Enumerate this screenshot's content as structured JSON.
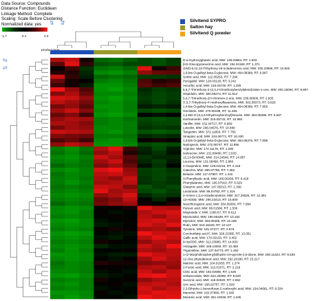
{
  "info": {
    "lines": [
      "Data Source: Compounds",
      "Distance Function: Euclidean",
      "Linkage Method: Complete",
      "Scaling: Scale Before Clustering",
      "Normalized data: yes"
    ]
  },
  "scale": {
    "min": "-1.7",
    "mid": "0.1",
    "max": "2.0"
  },
  "ptype_label": "product type",
  "legend": [
    {
      "label": "Silvitend SYPRO",
      "color": "#1f4fb4"
    },
    {
      "label": "Salton hay",
      "color": "#9a9a2a"
    },
    {
      "label": "Silvitend Q powder",
      "color": "#f3a21e"
    }
  ],
  "chart_data": {
    "type": "heatmap",
    "columns": 9,
    "column_groups": [
      "Silvitend SYPRO",
      "Silvitend SYPRO",
      "Silvitend SYPRO",
      "Salton hay",
      "Salton hay",
      "Salton hay",
      "Silvitend Q powder",
      "Silvitend Q powder",
      "Silvitend Q powder"
    ],
    "color_range": [
      -1.7,
      2.0
    ],
    "rows": [
      "D-α-Hydroxyglutaric acid, MW: 148.03664, RT: 1.503",
      "β-D-Glucopyranuronic acid, MW: 194.04189, RT: 1.371",
      "(15Z)-9,12,13-Trihydroxy-15-octadecenoic acid, MW: 330.23965, RT: 13.845",
      "1,6-bis-O-galloyl-beta-D-glucose, MW: 484.08388, RT: 6.087",
      "Sorbic acid, MW: 112.05253, RT: 7.296",
      "Pyrogallol, MW: 126.03128, RT: 3.242",
      "Ascorbic acid, MW: 133.03746, RT: 1.326",
      "5,6,7-Trimethoxy-2-(2,3,4-trimethoxybenzylidene)indan-1-one, MW: 400.15000, RT: 9.897",
      "Hispidulin, MW: 300.06274, RT: 11.914",
      "5,6,7-Trimethoxy-2H-chromen-2-one, MW: 236.06606, RT: 2.935",
      "3',5,7-Trihydroxy-4'-methoxyflavanone, MW: 302.08373, RT: 9.826",
      "1,4-bis-O-galloyl-beta-D-glucose, MW: 484.08388, RT: 7.656",
      "Genistein, MW: 270.05188, RT: 11.466",
      "1,4-Bis-O-(3,4,5-trihydroxybenzoyl)hexose, MW: 484.08396, RT: 6.597",
      "Isorhamnetin, MW: 316.05743, RT: 10.960",
      "Vanillin, MW: 152.04727, RT: 8.969",
      "Luteolin, MW: 286.04676, RT: 10.880",
      "Tangeritin, MW: 372.11863, RT: 7.750",
      "Sinapinic acid, MW: 224.06771, RT: 10.430",
      "1,3-bis-O-galloyl-beta-D-glucose, MW: 484.08376, RT: 7.098",
      "Naringenin, MW: 272.06747, RT: 11.656",
      "Arginine, MW: 174.11176, RT: 1.290",
      "Isoleucine, MW: 131.09490, RT: 2.633",
      "12,13-DiHOME, MW: 314.24546, RT: 14.957",
      "Leucine, MW: 131.09468, RT: 2.860",
      "4-Oxoproline, MW: 129.04215, RT: 2.419",
      "Catechin, MW: 290.07796, RT: 7.382",
      "Betaine, MW: 117.07907, RT: 1.415",
      "3-Phenyllactic acid, MW: 166.06266, RT: 6.419",
      "Phenylalanine, MW: 165.07910, RT: 5.529",
      "Glutamic acid, MW: 147.05313, RT: 1.338",
      "Lactamide, MW: 89.04782, RT: 1.316",
      "2-Amino-1,3,4-octadecanetriol, MW: 317.29325, RT: 12.381",
      "13-HODE, MW: 296.23414, RT: 15.600",
      "Neochlorogenic acid, MW: 354.09384, RT: 7.994",
      "Pyruvic acid, MW: 88.01568, RT: 1.536",
      "Mogroside V, MW: 1286.67, RT: 8.612",
      "Myoinositol, MW: 180.06339, RT: 10.162",
      "Myricitrin, MW: 464.09465, RT: 10.169",
      "Rutin, MW: 610.15229, RT: 10.127",
      "Tyrosine, MW: 181.07377, RT: 2.679",
      "Corchorifatty acid F, MW: 328.22385, RT: 13.051",
      "Gallic acid, MW: 170.02153, RT: 3.402",
      "9-HpODE, MW: 312.23985, RT: 14.830",
      "Astragalin, MW: 448.10050, RT: 10.459",
      "Trigonelline, MW: 137.04773, RT: 1.492",
      "1-(2-Morpholinophenyl)dihydro-1H-pyrrole-2,5-dione, MW: 260.11623, RT: 9.639",
      "12-Oxo phytodienoic acid, MW: 292.20180, RT: 15.217",
      "Malonic acid, MW: 104.01053, RT: 1.374",
      "2-Furoic acid, MW: 112.01571, RT: 2.219",
      "Citric acid, MW: 192.02695, RT: 1.626",
      "verbascoside, MW: 624.20369, RT: 9.620",
      "Succinic acid, MW: 118.02620, RT: 2.652",
      "Uric acid, MW: 168.02757, RT: 1.628",
      "2,3-Dihydro-1-benzofuran-2-carboxylic acid, MW: 164.04681, RT: 9.334",
      "Mannitol, MW: 182.07890, RT: 1.345",
      "Muramic acid, MW: 251.10049, RT: 1.345"
    ],
    "values": [
      [
        1.4,
        1.6,
        0.3,
        -0.8,
        -0.9,
        -0.7,
        -0.5,
        -0.6,
        -0.4
      ],
      [
        0.8,
        1.8,
        0.5,
        -0.6,
        -0.7,
        -0.5,
        -0.5,
        -0.6,
        -0.4
      ],
      [
        0.2,
        0.6,
        -0.3,
        -0.9,
        -1.0,
        -0.8,
        1.8,
        0.3,
        0.6
      ],
      [
        0.4,
        0.4,
        -0.2,
        -1.1,
        -1.2,
        -1.0,
        1.2,
        0.9,
        0.8
      ],
      [
        1.6,
        0.5,
        -0.1,
        -0.8,
        -0.9,
        -0.8,
        -0.4,
        -0.4,
        -0.3
      ],
      [
        0.9,
        0.3,
        0.2,
        -1.0,
        -1.1,
        -0.9,
        0.7,
        0.4,
        0.5
      ],
      [
        0.6,
        0.3,
        -0.1,
        -1.2,
        -1.2,
        -1.0,
        0.8,
        0.6,
        0.7
      ],
      [
        1.9,
        1.2,
        0.7,
        -1.2,
        -1.3,
        -1.1,
        -0.2,
        -0.4,
        -0.3
      ],
      [
        1.1,
        1.4,
        0.9,
        -1.1,
        -1.1,
        -1.0,
        -0.3,
        -0.5,
        -0.4
      ],
      [
        1.7,
        1.6,
        1.2,
        -1.2,
        -1.3,
        -1.1,
        -0.4,
        -0.5,
        -0.4
      ],
      [
        1.5,
        1.3,
        1.0,
        -1.1,
        -1.2,
        -1.0,
        -0.3,
        -0.5,
        -0.3
      ],
      [
        1.0,
        1.2,
        0.8,
        -1.2,
        -1.2,
        -1.0,
        -0.1,
        -0.2,
        -0.1
      ],
      [
        1.3,
        1.6,
        1.1,
        -1.1,
        -1.2,
        -1.0,
        -0.5,
        -0.6,
        -0.5
      ],
      [
        0.9,
        1.1,
        0.6,
        -1.2,
        -1.3,
        -1.1,
        0.1,
        0.0,
        0.1
      ],
      [
        1.2,
        1.4,
        1.3,
        -1.0,
        -1.1,
        -0.9,
        -0.5,
        -0.6,
        -0.5
      ],
      [
        1.4,
        1.3,
        1.1,
        -1.0,
        -1.1,
        -1.0,
        -0.4,
        -0.5,
        -0.5
      ],
      [
        1.0,
        1.3,
        1.2,
        -1.1,
        -1.1,
        -1.0,
        -0.3,
        -0.4,
        -0.3
      ],
      [
        1.6,
        1.5,
        1.4,
        -1.1,
        -1.2,
        -1.0,
        -0.6,
        -0.7,
        -0.6
      ],
      [
        1.1,
        1.0,
        0.9,
        -1.0,
        -1.0,
        -0.9,
        -0.2,
        -0.3,
        -0.2
      ],
      [
        0.7,
        0.9,
        0.6,
        -1.1,
        -1.2,
        -1.0,
        0.2,
        0.3,
        0.2
      ],
      [
        1.2,
        1.5,
        1.3,
        -1.2,
        -1.2,
        -1.1,
        -0.5,
        -0.6,
        -0.5
      ],
      [
        -1.0,
        -1.2,
        -0.9,
        1.4,
        1.8,
        0.6,
        -0.2,
        -0.5,
        -0.1
      ],
      [
        -0.9,
        -1.1,
        -0.8,
        1.2,
        1.5,
        0.4,
        -0.1,
        -0.3,
        0.0
      ],
      [
        -1.1,
        -1.2,
        -1.0,
        1.6,
        1.3,
        0.8,
        -0.3,
        -0.2,
        -0.2
      ],
      [
        -1.0,
        -1.1,
        -0.9,
        1.3,
        1.6,
        0.7,
        -0.2,
        -0.4,
        -0.1
      ],
      [
        -0.8,
        -1.0,
        -0.9,
        1.1,
        1.3,
        0.9,
        0.0,
        -0.3,
        0.1
      ],
      [
        -1.1,
        -1.2,
        -1.0,
        1.7,
        1.9,
        1.2,
        -0.4,
        -0.5,
        -0.3
      ],
      [
        -0.9,
        -1.1,
        -1.0,
        1.5,
        1.6,
        1.3,
        -0.4,
        -0.5,
        -0.4
      ],
      [
        -1.0,
        -1.1,
        -0.9,
        1.4,
        1.2,
        1.6,
        -0.3,
        -0.5,
        -0.3
      ],
      [
        -1.0,
        -1.2,
        -1.0,
        1.3,
        1.4,
        1.5,
        -0.3,
        -0.4,
        -0.3
      ],
      [
        -0.9,
        -1.0,
        -0.9,
        1.6,
        1.5,
        1.1,
        -0.6,
        -0.4,
        -0.5
      ],
      [
        -1.0,
        -1.1,
        -1.0,
        1.8,
        1.3,
        1.4,
        -0.5,
        -0.6,
        -0.4
      ],
      [
        -1.1,
        -1.2,
        -1.1,
        1.2,
        1.4,
        1.7,
        -0.2,
        -0.4,
        -0.3
      ],
      [
        -1.0,
        -1.1,
        -1.0,
        0.9,
        1.1,
        1.5,
        0.1,
        -0.2,
        0.2
      ],
      [
        -0.8,
        -1.0,
        -0.9,
        1.0,
        1.2,
        1.3,
        0.3,
        0.1,
        0.4
      ],
      [
        -1.1,
        -1.2,
        -1.1,
        0.1,
        0.2,
        0.3,
        1.8,
        1.5,
        1.4
      ],
      [
        -1.1,
        -1.2,
        -1.0,
        0.2,
        0.0,
        0.1,
        1.4,
        1.6,
        1.7
      ],
      [
        -1.0,
        -1.1,
        -1.0,
        0.1,
        0.2,
        0.1,
        1.5,
        1.3,
        1.6
      ],
      [
        -1.2,
        -1.3,
        -1.1,
        0.0,
        0.1,
        0.2,
        1.6,
        1.7,
        1.5
      ],
      [
        -1.1,
        -1.2,
        -1.1,
        -0.1,
        0.0,
        0.1,
        1.7,
        1.5,
        1.8
      ],
      [
        -1.0,
        -1.1,
        -1.0,
        0.2,
        0.3,
        0.2,
        1.3,
        1.4,
        1.2
      ],
      [
        -1.2,
        -1.3,
        -1.2,
        0.1,
        0.0,
        0.0,
        1.9,
        1.6,
        1.7
      ],
      [
        -1.1,
        -1.2,
        -1.1,
        0.0,
        -0.1,
        0.1,
        1.5,
        1.8,
        1.6
      ],
      [
        -1.0,
        -1.1,
        -1.0,
        0.3,
        0.2,
        0.1,
        1.2,
        1.5,
        1.4
      ],
      [
        -1.1,
        -1.2,
        -1.1,
        -0.2,
        0.0,
        0.0,
        1.6,
        1.4,
        1.9
      ],
      [
        -1.0,
        -1.2,
        -1.0,
        0.1,
        0.1,
        0.2,
        1.4,
        1.3,
        1.5
      ],
      [
        -1.2,
        -1.2,
        -1.1,
        0.0,
        -0.1,
        -0.1,
        1.8,
        1.6,
        1.5
      ],
      [
        -1.1,
        -1.2,
        -1.1,
        0.1,
        0.0,
        0.2,
        1.3,
        1.7,
        1.4
      ],
      [
        -0.9,
        -1.1,
        -1.0,
        0.4,
        0.3,
        0.3,
        1.1,
        1.2,
        1.3
      ],
      [
        -1.0,
        -1.1,
        -1.0,
        0.2,
        0.2,
        0.1,
        1.4,
        1.5,
        1.2
      ],
      [
        -1.1,
        -1.1,
        -1.0,
        0.0,
        0.1,
        0.0,
        1.6,
        1.3,
        1.6
      ],
      [
        -1.2,
        -1.3,
        -1.1,
        -0.1,
        0.0,
        0.1,
        1.8,
        1.9,
        1.6
      ],
      [
        -1.0,
        -1.1,
        -1.0,
        0.3,
        0.1,
        0.2,
        1.2,
        1.4,
        1.5
      ],
      [
        -1.1,
        -1.2,
        -1.0,
        0.1,
        0.2,
        0.0,
        1.5,
        1.6,
        1.4
      ],
      [
        -1.0,
        -1.1,
        -1.0,
        0.0,
        0.1,
        0.1,
        1.7,
        1.4,
        1.6
      ],
      [
        -1.2,
        -1.2,
        -1.1,
        0.2,
        0.0,
        0.1,
        1.6,
        1.8,
        1.7
      ],
      [
        -1.1,
        -1.3,
        -1.1,
        0.1,
        0.1,
        0.0,
        1.9,
        1.7,
        1.8
      ]
    ]
  }
}
